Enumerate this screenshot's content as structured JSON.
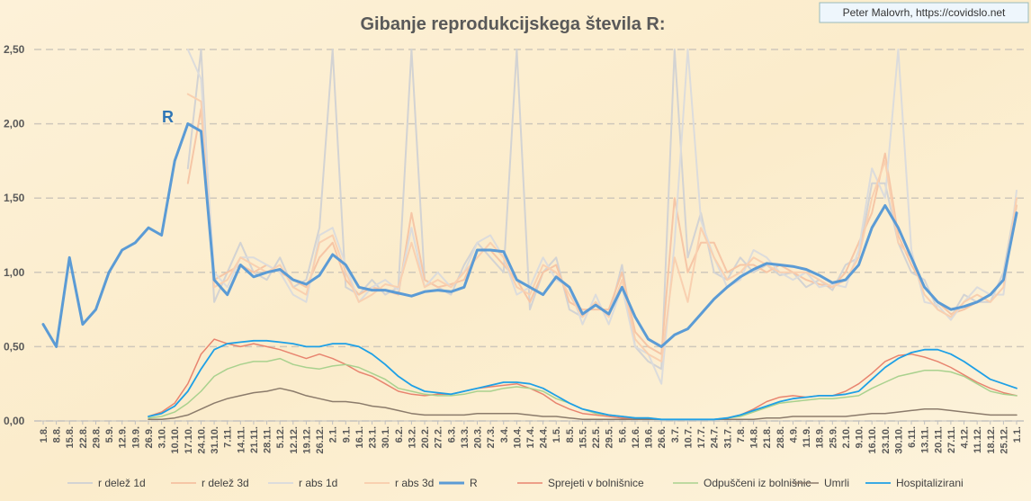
{
  "chart_data": {
    "type": "line",
    "title": "Gibanje reprodukcijskega števila R:",
    "source": "Peter Malovrh, https://covidslo.net",
    "annotation": "R",
    "categories": [
      "1.8.",
      "8.8.",
      "15.8.",
      "22.8.",
      "29.8.",
      "5.9.",
      "12.9.",
      "19.9.",
      "26.9.",
      "3.10.",
      "10.10.",
      "17.10.",
      "24.10.",
      "31.10.",
      "7.11.",
      "14.11.",
      "21.11.",
      "28.11.",
      "5.12.",
      "12.12.",
      "19.12.",
      "26.12.",
      "2.1.",
      "9.1.",
      "16.1.",
      "23.1.",
      "30.1.",
      "6.2.",
      "13.2.",
      "20.2.",
      "27.2.",
      "6.3.",
      "13.3.",
      "20.3.",
      "27.3.",
      "3.4.",
      "10.4.",
      "17.4.",
      "24.4.",
      "1.5.",
      "8.5.",
      "15.5.",
      "22.5.",
      "29.5.",
      "5.6.",
      "12.6.",
      "19.6.",
      "26.6.",
      "3.7.",
      "10.7.",
      "17.7.",
      "24.7.",
      "31.7.",
      "7.8.",
      "14.8.",
      "21.8.",
      "28.8.",
      "4.9.",
      "11.9.",
      "18.9.",
      "25.9.",
      "2.10.",
      "9.10.",
      "16.10.",
      "23.10.",
      "30.10.",
      "6.11.",
      "13.11.",
      "20.11.",
      "27.11.",
      "4.12.",
      "11.12.",
      "18.12.",
      "25.12.",
      "1.1."
    ],
    "ylim": [
      0,
      2.5
    ],
    "yticks": [
      {
        "value": 0,
        "label": "0,00"
      },
      {
        "value": 0.5,
        "label": "0,50"
      },
      {
        "value": 1,
        "label": "1,00"
      },
      {
        "value": 1.5,
        "label": "1,50"
      },
      {
        "value": 2,
        "label": "2,00"
      },
      {
        "value": 2.5,
        "label": "2,50"
      }
    ],
    "grid": true,
    "legend": "bottom",
    "series": [
      {
        "name": "r delež 1d",
        "color": "#d3d3d3",
        "width": 2,
        "values": [
          null,
          null,
          null,
          null,
          null,
          null,
          null,
          null,
          null,
          null,
          null,
          1.7,
          2.5,
          0.8,
          1.0,
          1.2,
          1.0,
          0.95,
          1.1,
          0.9,
          0.95,
          1.3,
          2.5,
          0.9,
          0.85,
          0.95,
          0.85,
          0.9,
          2.5,
          0.95,
          0.9,
          0.85,
          1.05,
          1.2,
          1.1,
          1.0,
          2.5,
          0.75,
          1.0,
          1.1,
          0.75,
          0.7,
          0.8,
          0.7,
          1.05,
          0.5,
          0.4,
          0.35,
          2.5,
          1.1,
          1.4,
          1.0,
          0.95,
          1.1,
          1.0,
          1.05,
          0.98,
          1.0,
          0.9,
          0.95,
          0.88,
          1.05,
          1.1,
          1.6,
          1.6,
          1.2,
          1.0,
          0.95,
          0.75,
          0.7,
          0.85,
          0.8,
          0.8,
          1.0,
          1.5
        ]
      },
      {
        "name": "r delež 3d",
        "color": "#f6c6a6",
        "width": 2,
        "values": [
          null,
          null,
          null,
          null,
          null,
          null,
          null,
          null,
          null,
          null,
          null,
          1.6,
          2.1,
          0.95,
          1.0,
          1.05,
          1.0,
          1.05,
          1.0,
          0.95,
          0.9,
          1.1,
          1.2,
          0.95,
          0.85,
          0.9,
          0.88,
          0.85,
          1.4,
          0.95,
          0.9,
          0.92,
          0.95,
          1.15,
          1.15,
          1.05,
          0.95,
          0.8,
          1.0,
          1.05,
          0.8,
          0.75,
          0.75,
          0.75,
          1.0,
          0.6,
          0.5,
          0.45,
          1.5,
          1.0,
          1.2,
          1.2,
          1.0,
          1.05,
          1.05,
          1.0,
          1.05,
          1.0,
          0.95,
          0.92,
          0.9,
          1.0,
          1.2,
          1.4,
          1.8,
          1.25,
          1.05,
          0.9,
          0.8,
          0.72,
          0.75,
          0.8,
          0.85,
          0.95,
          1.45
        ]
      },
      {
        "name": "r abs 1d",
        "color": "#dcdcdc",
        "width": 2,
        "values": [
          null,
          null,
          null,
          null,
          null,
          null,
          null,
          null,
          null,
          null,
          null,
          2.5,
          2.3,
          1.0,
          0.9,
          1.1,
          1.1,
          1.05,
          1.0,
          0.85,
          0.8,
          1.25,
          1.3,
          1.05,
          0.8,
          0.9,
          0.95,
          0.88,
          1.3,
          0.9,
          1.0,
          0.9,
          1.0,
          1.2,
          1.25,
          1.1,
          0.85,
          0.9,
          1.1,
          0.95,
          0.9,
          0.65,
          0.85,
          0.65,
          0.9,
          0.5,
          0.45,
          0.25,
          1.2,
          2.5,
          1.35,
          1.1,
          0.9,
          0.95,
          1.15,
          1.1,
          1.0,
          0.95,
          1.0,
          0.9,
          0.92,
          0.9,
          1.15,
          1.7,
          1.5,
          2.5,
          1.15,
          0.8,
          0.78,
          0.68,
          0.8,
          0.9,
          0.85,
          0.85,
          1.55
        ]
      },
      {
        "name": "r abs 3d",
        "color": "#f9d0b0",
        "width": 2,
        "values": [
          null,
          null,
          null,
          null,
          null,
          null,
          null,
          null,
          null,
          null,
          null,
          2.2,
          2.15,
          0.9,
          0.95,
          1.1,
          1.05,
          1.0,
          1.05,
          0.9,
          0.85,
          1.2,
          1.25,
          1.0,
          0.8,
          0.85,
          0.92,
          0.9,
          1.2,
          0.9,
          0.95,
          0.9,
          1.0,
          1.1,
          1.2,
          1.1,
          0.9,
          0.85,
          1.05,
          1.0,
          0.85,
          0.7,
          0.8,
          0.7,
          0.95,
          0.55,
          0.45,
          0.4,
          1.1,
          0.8,
          1.3,
          1.1,
          0.95,
          1.0,
          1.1,
          1.05,
          1.0,
          1.0,
          1.0,
          0.95,
          0.9,
          0.95,
          1.1,
          1.5,
          1.75,
          1.2,
          1.1,
          0.85,
          0.75,
          0.7,
          0.8,
          0.85,
          0.8,
          0.9,
          1.5
        ]
      },
      {
        "name": "R",
        "color": "#5b9bd5",
        "width": 3,
        "values": [
          0.65,
          0.5,
          1.1,
          0.65,
          0.75,
          1.0,
          1.15,
          1.2,
          1.3,
          1.25,
          1.75,
          2.0,
          1.95,
          0.95,
          0.85,
          1.05,
          0.97,
          1.0,
          1.02,
          0.95,
          0.92,
          0.98,
          1.12,
          1.05,
          0.9,
          0.88,
          0.88,
          0.86,
          0.84,
          0.87,
          0.88,
          0.87,
          0.9,
          1.15,
          1.15,
          1.14,
          0.95,
          0.9,
          0.85,
          0.97,
          0.9,
          0.72,
          0.78,
          0.72,
          0.9,
          0.7,
          0.55,
          0.5,
          0.58,
          0.62,
          0.72,
          0.82,
          0.9,
          0.97,
          1.02,
          1.06,
          1.05,
          1.04,
          1.02,
          0.98,
          0.93,
          0.95,
          1.05,
          1.3,
          1.45,
          1.3,
          1.1,
          0.9,
          0.8,
          0.75,
          0.77,
          0.8,
          0.85,
          0.95,
          1.4
        ]
      },
      {
        "name": "Sprejeti v bolnišnice",
        "color": "#e8846f",
        "width": 1.5,
        "values": [
          null,
          null,
          null,
          null,
          null,
          null,
          null,
          null,
          0.03,
          0.06,
          0.12,
          0.25,
          0.45,
          0.55,
          0.52,
          0.5,
          0.52,
          0.5,
          0.48,
          0.45,
          0.42,
          0.45,
          0.42,
          0.38,
          0.33,
          0.3,
          0.25,
          0.2,
          0.18,
          0.17,
          0.18,
          0.18,
          0.2,
          0.22,
          0.23,
          0.24,
          0.25,
          0.22,
          0.18,
          0.12,
          0.08,
          0.05,
          0.04,
          0.03,
          0.02,
          0.02,
          0.01,
          0.01,
          0.01,
          0.01,
          0.01,
          0.01,
          0.02,
          0.04,
          0.08,
          0.13,
          0.16,
          0.17,
          0.16,
          0.17,
          0.17,
          0.2,
          0.25,
          0.32,
          0.4,
          0.44,
          0.45,
          0.43,
          0.4,
          0.36,
          0.31,
          0.26,
          0.22,
          0.19,
          0.17
        ]
      },
      {
        "name": "Odpuščeni iz bolnišnic",
        "color": "#a9d18e",
        "width": 1.5,
        "values": [
          null,
          null,
          null,
          null,
          null,
          null,
          null,
          null,
          0.02,
          0.03,
          0.06,
          0.12,
          0.2,
          0.3,
          0.35,
          0.38,
          0.4,
          0.4,
          0.42,
          0.38,
          0.36,
          0.35,
          0.37,
          0.38,
          0.36,
          0.32,
          0.28,
          0.22,
          0.2,
          0.18,
          0.17,
          0.17,
          0.18,
          0.2,
          0.2,
          0.22,
          0.23,
          0.22,
          0.2,
          0.15,
          0.12,
          0.08,
          0.05,
          0.04,
          0.03,
          0.02,
          0.02,
          0.01,
          0.01,
          0.01,
          0.01,
          0.01,
          0.02,
          0.03,
          0.06,
          0.09,
          0.12,
          0.13,
          0.14,
          0.15,
          0.15,
          0.16,
          0.17,
          0.22,
          0.26,
          0.3,
          0.32,
          0.34,
          0.34,
          0.33,
          0.3,
          0.25,
          0.2,
          0.18,
          0.17
        ]
      },
      {
        "name": "Umrli",
        "color": "#8b7b6b",
        "width": 1.5,
        "values": [
          null,
          null,
          null,
          null,
          null,
          null,
          null,
          null,
          0.01,
          0.01,
          0.02,
          0.04,
          0.08,
          0.12,
          0.15,
          0.17,
          0.19,
          0.2,
          0.22,
          0.2,
          0.17,
          0.15,
          0.13,
          0.13,
          0.12,
          0.1,
          0.09,
          0.07,
          0.05,
          0.04,
          0.04,
          0.04,
          0.04,
          0.05,
          0.05,
          0.05,
          0.05,
          0.04,
          0.03,
          0.03,
          0.02,
          0.01,
          0.01,
          0.01,
          0.01,
          0.01,
          0.01,
          0.01,
          0.01,
          0.01,
          0.01,
          0.01,
          0.01,
          0.01,
          0.01,
          0.02,
          0.02,
          0.03,
          0.03,
          0.03,
          0.03,
          0.03,
          0.04,
          0.05,
          0.05,
          0.06,
          0.07,
          0.08,
          0.08,
          0.07,
          0.06,
          0.05,
          0.04,
          0.04,
          0.04
        ]
      },
      {
        "name": "Hospitalizirani",
        "color": "#1ea0e6",
        "width": 1.8,
        "values": [
          null,
          null,
          null,
          null,
          null,
          null,
          null,
          null,
          0.03,
          0.05,
          0.1,
          0.2,
          0.35,
          0.48,
          0.52,
          0.53,
          0.54,
          0.54,
          0.53,
          0.52,
          0.5,
          0.5,
          0.52,
          0.52,
          0.5,
          0.45,
          0.38,
          0.3,
          0.24,
          0.2,
          0.19,
          0.18,
          0.2,
          0.22,
          0.24,
          0.26,
          0.26,
          0.25,
          0.22,
          0.17,
          0.12,
          0.08,
          0.06,
          0.04,
          0.03,
          0.02,
          0.02,
          0.01,
          0.01,
          0.01,
          0.01,
          0.01,
          0.02,
          0.04,
          0.07,
          0.1,
          0.13,
          0.15,
          0.16,
          0.17,
          0.17,
          0.18,
          0.2,
          0.28,
          0.36,
          0.42,
          0.46,
          0.48,
          0.48,
          0.45,
          0.4,
          0.34,
          0.28,
          0.25,
          0.22
        ]
      }
    ]
  }
}
